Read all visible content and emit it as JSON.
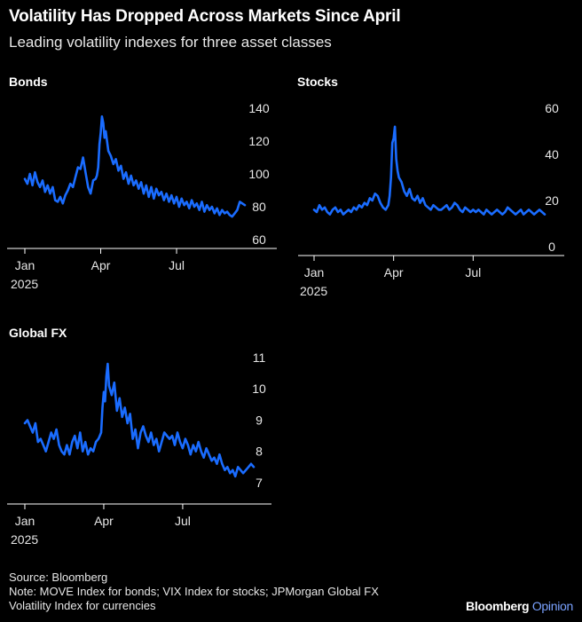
{
  "header": {
    "title": "Volatility Has Dropped Across Markets Since April",
    "subtitle": "Leading volatility indexes for three asset classes"
  },
  "footer": {
    "source": "Source: Bloomberg",
    "note_line1": "Note: MOVE Index for bonds; VIX Index for stocks; JPMorgan Global FX",
    "note_line2": "Volatility Index for currencies",
    "brand_main": "Bloomberg",
    "brand_sub": "Opinion"
  },
  "colors": {
    "line": "#1a6cff",
    "background": "#000000",
    "text": "#ffffff",
    "axis": "#ffffff"
  },
  "chart_data": [
    {
      "id": "bonds",
      "type": "line",
      "title": "Bonds",
      "ylim": [
        60,
        140
      ],
      "yticks": [
        "60",
        "80",
        "100",
        "120",
        "140"
      ],
      "xticks": [
        {
          "label": "Jan",
          "year": "2025",
          "pos": 0.0
        },
        {
          "label": "Apr",
          "pos": 3.0
        },
        {
          "label": "Jul",
          "pos": 6.0
        }
      ],
      "xlim": [
        0,
        8.7
      ],
      "series": [
        {
          "x": [
            0.0,
            0.1,
            0.2,
            0.3,
            0.4,
            0.5,
            0.6,
            0.7,
            0.8,
            0.9,
            1.0,
            1.1,
            1.2,
            1.3,
            1.4,
            1.5,
            1.6,
            1.7,
            1.8,
            1.9,
            2.0,
            2.1,
            2.2,
            2.3,
            2.4,
            2.5,
            2.6,
            2.7,
            2.8,
            2.85,
            2.9,
            2.95,
            3.0,
            3.05,
            3.1,
            3.15,
            3.2,
            3.3,
            3.4,
            3.5,
            3.6,
            3.7,
            3.8,
            3.9,
            4.0,
            4.1,
            4.2,
            4.3,
            4.4,
            4.5,
            4.6,
            4.7,
            4.8,
            4.9,
            5.0,
            5.1,
            5.2,
            5.3,
            5.4,
            5.5,
            5.6,
            5.7,
            5.8,
            5.9,
            6.0,
            6.1,
            6.2,
            6.3,
            6.4,
            6.5,
            6.6,
            6.7,
            6.8,
            6.9,
            7.0,
            7.1,
            7.2,
            7.3,
            7.4,
            7.5,
            7.6,
            7.7,
            7.8,
            7.9,
            8.0,
            8.1,
            8.2,
            8.3,
            8.4,
            8.5,
            8.6,
            8.7
          ],
          "values": [
            97,
            94,
            100,
            93,
            101,
            95,
            92,
            96,
            89,
            93,
            88,
            92,
            84,
            83,
            86,
            82,
            87,
            90,
            94,
            92,
            98,
            104,
            103,
            110,
            101,
            92,
            88,
            96,
            97,
            99,
            104,
            118,
            125,
            135,
            131,
            122,
            126,
            114,
            111,
            106,
            109,
            102,
            105,
            97,
            101,
            94,
            99,
            93,
            96,
            91,
            95,
            88,
            93,
            86,
            92,
            85,
            91,
            87,
            89,
            84,
            88,
            83,
            87,
            82,
            86,
            80,
            85,
            81,
            83,
            79,
            84,
            80,
            82,
            78,
            83,
            77,
            81,
            78,
            80,
            76,
            79,
            75,
            78,
            76,
            77,
            75,
            74,
            76,
            78,
            83,
            82,
            81
          ]
        }
      ]
    },
    {
      "id": "stocks",
      "type": "line",
      "title": "Stocks",
      "ylim": [
        0,
        60
      ],
      "yticks": [
        "0",
        "20",
        "40",
        "60"
      ],
      "xticks": [
        {
          "label": "Jan",
          "year": "2025",
          "pos": 0.0
        },
        {
          "label": "Apr",
          "pos": 3.0
        },
        {
          "label": "Jul",
          "pos": 6.0
        }
      ],
      "xlim": [
        0,
        8.7
      ],
      "series": [
        {
          "x": [
            0.0,
            0.1,
            0.2,
            0.3,
            0.4,
            0.5,
            0.6,
            0.7,
            0.8,
            0.9,
            1.0,
            1.1,
            1.2,
            1.3,
            1.4,
            1.5,
            1.6,
            1.7,
            1.8,
            1.9,
            2.0,
            2.1,
            2.2,
            2.3,
            2.4,
            2.5,
            2.6,
            2.7,
            2.8,
            2.85,
            2.9,
            2.95,
            3.0,
            3.05,
            3.1,
            3.15,
            3.2,
            3.3,
            3.4,
            3.5,
            3.6,
            3.7,
            3.8,
            3.9,
            4.0,
            4.1,
            4.2,
            4.3,
            4.4,
            4.5,
            4.6,
            4.7,
            4.8,
            4.9,
            5.0,
            5.1,
            5.2,
            5.3,
            5.4,
            5.5,
            5.6,
            5.7,
            5.8,
            5.9,
            6.0,
            6.1,
            6.2,
            6.3,
            6.4,
            6.5,
            6.6,
            6.7,
            6.8,
            6.9,
            7.0,
            7.1,
            7.2,
            7.3,
            7.4,
            7.5,
            7.6,
            7.7,
            7.8,
            7.9,
            8.0,
            8.1,
            8.2,
            8.3,
            8.4,
            8.5,
            8.6,
            8.7
          ],
          "values": [
            16,
            15,
            18,
            16,
            17,
            15,
            14,
            16,
            17,
            15,
            16,
            14,
            15,
            16,
            15,
            17,
            16,
            18,
            17,
            19,
            18,
            21,
            20,
            23,
            22,
            19,
            17,
            16,
            18,
            22,
            30,
            45,
            47,
            52,
            38,
            33,
            30,
            28,
            24,
            22,
            25,
            21,
            20,
            22,
            19,
            21,
            18,
            17,
            16,
            18,
            17,
            16,
            16,
            17,
            18,
            16,
            17,
            19,
            18,
            16,
            15,
            17,
            16,
            15,
            16,
            15,
            16,
            15,
            14,
            16,
            15,
            14,
            15,
            16,
            15,
            14,
            15,
            17,
            16,
            15,
            14,
            15,
            16,
            14,
            15,
            16,
            15,
            14,
            15,
            16,
            15,
            14
          ]
        }
      ]
    },
    {
      "id": "fx",
      "type": "line",
      "title": "Global FX",
      "ylim": [
        6.6,
        11
      ],
      "yticks": [
        "7",
        "8",
        "9",
        "10",
        "11"
      ],
      "ytick_values": [
        7.0,
        8.0,
        9.0,
        10.0,
        11.0
      ],
      "xticks": [
        {
          "label": "Jan",
          "year": "2025",
          "pos": 0.0
        },
        {
          "label": "Apr",
          "pos": 3.0
        },
        {
          "label": "Jul",
          "pos": 6.0
        }
      ],
      "xlim": [
        0,
        8.7
      ],
      "series": [
        {
          "x": [
            0.0,
            0.1,
            0.2,
            0.3,
            0.4,
            0.5,
            0.6,
            0.7,
            0.8,
            0.9,
            1.0,
            1.1,
            1.2,
            1.3,
            1.4,
            1.5,
            1.6,
            1.7,
            1.8,
            1.9,
            2.0,
            2.1,
            2.2,
            2.3,
            2.4,
            2.5,
            2.6,
            2.7,
            2.8,
            2.85,
            2.9,
            2.95,
            3.0,
            3.05,
            3.1,
            3.15,
            3.2,
            3.3,
            3.4,
            3.5,
            3.6,
            3.7,
            3.8,
            3.9,
            4.0,
            4.1,
            4.2,
            4.3,
            4.4,
            4.5,
            4.6,
            4.7,
            4.8,
            4.9,
            5.0,
            5.1,
            5.2,
            5.3,
            5.4,
            5.5,
            5.6,
            5.7,
            5.8,
            5.9,
            6.0,
            6.1,
            6.2,
            6.3,
            6.4,
            6.5,
            6.6,
            6.7,
            6.8,
            6.9,
            7.0,
            7.1,
            7.2,
            7.3,
            7.4,
            7.5,
            7.6,
            7.7,
            7.8,
            7.9,
            8.0,
            8.1,
            8.2,
            8.3,
            8.4,
            8.5,
            8.6,
            8.7
          ],
          "values": [
            8.9,
            9.0,
            8.8,
            8.6,
            8.9,
            8.3,
            8.4,
            8.2,
            8.0,
            8.3,
            8.6,
            8.4,
            8.7,
            8.2,
            8.0,
            7.9,
            8.2,
            7.9,
            8.3,
            8.5,
            8.1,
            8.6,
            8.0,
            8.3,
            7.9,
            8.1,
            8.0,
            8.3,
            8.4,
            8.5,
            8.6,
            9.4,
            9.9,
            9.6,
            10.4,
            10.8,
            10.1,
            9.8,
            10.2,
            9.3,
            9.7,
            9.1,
            9.4,
            8.9,
            9.2,
            8.4,
            8.7,
            8.1,
            8.6,
            8.8,
            8.5,
            8.3,
            8.6,
            8.2,
            8.4,
            8.0,
            8.3,
            8.6,
            8.5,
            8.4,
            8.5,
            8.2,
            8.6,
            8.3,
            8.1,
            8.4,
            8.2,
            7.9,
            8.2,
            8.0,
            8.3,
            8.0,
            7.8,
            8.1,
            7.9,
            7.7,
            7.8,
            7.6,
            7.9,
            7.6,
            7.4,
            7.5,
            7.3,
            7.4,
            7.2,
            7.5,
            7.4,
            7.3,
            7.4,
            7.5,
            7.6,
            7.5
          ]
        }
      ]
    }
  ]
}
